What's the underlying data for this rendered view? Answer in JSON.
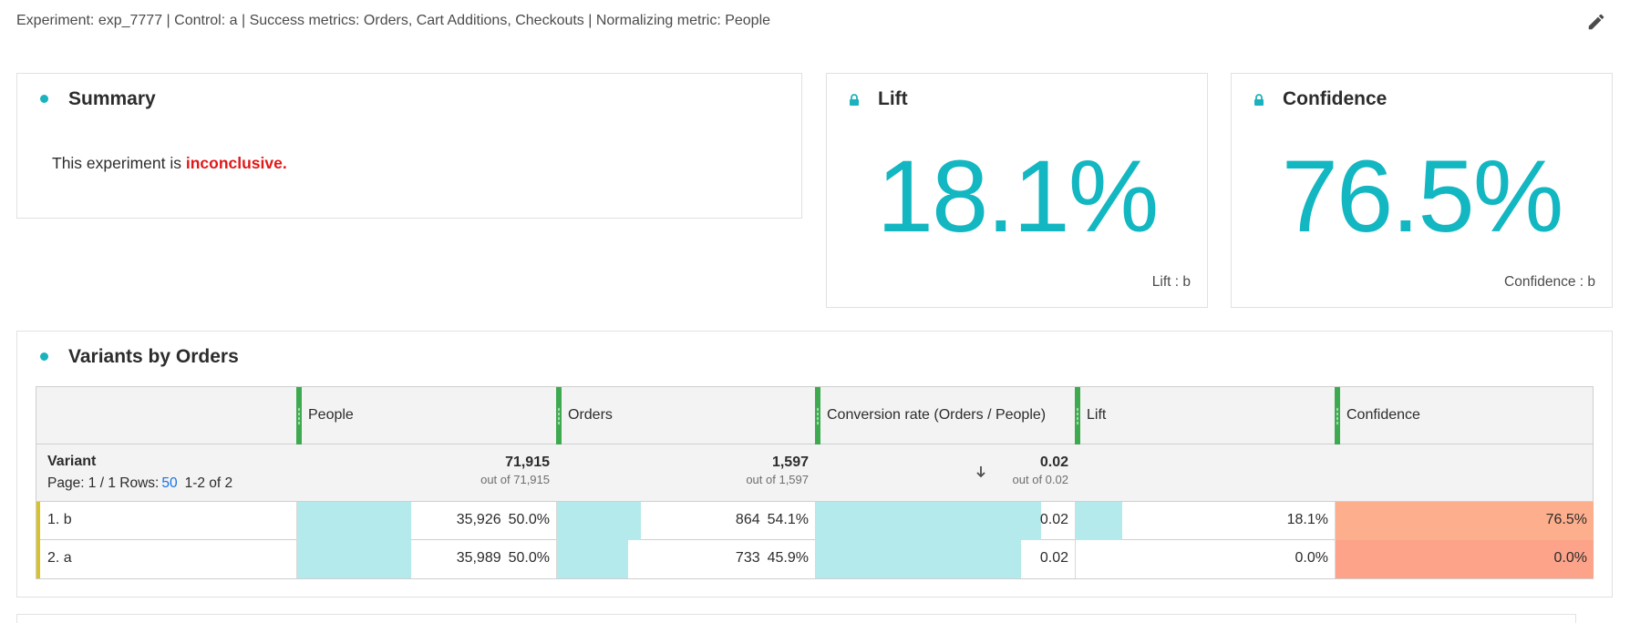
{
  "header": {
    "experiment_line": "Experiment: exp_7777 | Control: a | Success metrics: Orders, Cart Additions, Checkouts | Normalizing metric: People",
    "edit_icon": "pencil-icon"
  },
  "summary": {
    "title": "Summary",
    "text_prefix": "This experiment is ",
    "status": "inconclusive",
    "text_suffix": ".",
    "status_color": "#e11818"
  },
  "lift_card": {
    "title": "Lift",
    "value": "18.1%",
    "footer": "Lift : b",
    "value_color": "#12b7c1"
  },
  "confidence_card": {
    "title": "Confidence",
    "value": "76.5%",
    "footer": "Confidence : b",
    "value_color": "#12b7c1"
  },
  "variants_table": {
    "title": "Variants by Orders",
    "columns": [
      "People",
      "Orders",
      "Conversion rate (Orders / People)",
      "Lift",
      "Confidence"
    ],
    "dimension_label": "Variant",
    "pagination": {
      "page_text": "Page: 1 / 1  Rows:",
      "rows_per_page": "50",
      "range": "1-2 of 2"
    },
    "totals": {
      "people": "71,915",
      "people_out_of": "out of 71,915",
      "orders": "1,597",
      "orders_out_of": "out of 1,597",
      "conversion": "0.02",
      "conversion_out_of": "out of 0.02"
    },
    "rows": [
      {
        "name": "1.  b",
        "people": "35,926",
        "people_pct": "50.0%",
        "people_share": 0.5,
        "orders": "864",
        "orders_pct": "54.1%",
        "orders_share": 0.541,
        "conversion": "0.02",
        "conversion_share": 1.0,
        "lift": "18.1%",
        "lift_share": 0.181,
        "confidence": "76.5%",
        "confidence_color": "#fdae8c"
      },
      {
        "name": "2.  a",
        "people": "35,989",
        "people_pct": "50.0%",
        "people_share": 0.5,
        "orders": "733",
        "orders_pct": "45.9%",
        "orders_share": 0.459,
        "conversion": "0.02",
        "conversion_share": 0.91,
        "lift": "0.0%",
        "lift_share": 0.0,
        "confidence": "0.0%",
        "confidence_color": "#fca38a"
      }
    ]
  }
}
